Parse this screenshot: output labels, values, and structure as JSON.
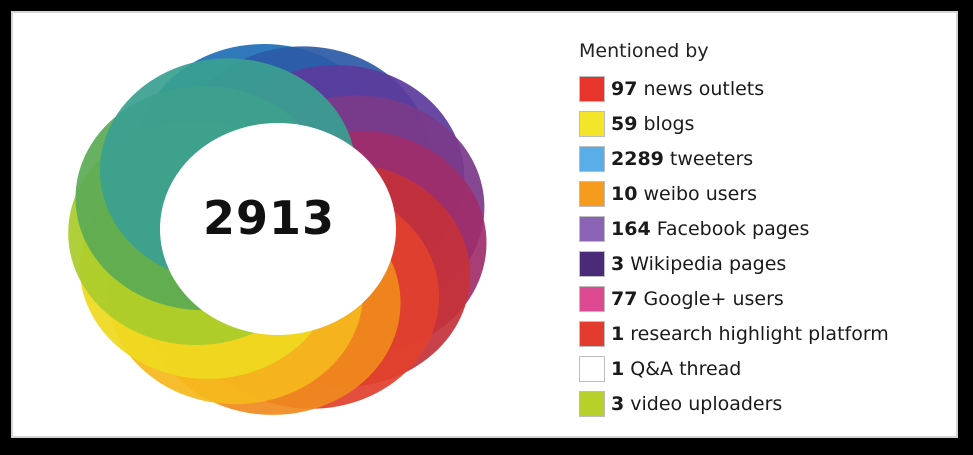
{
  "badge": {
    "score": "2913",
    "ring_colors": [
      "#1e6fb5",
      "#2d5aa6",
      "#5b3b9c",
      "#7b3a8a",
      "#a02e6a",
      "#c4323a",
      "#e2402d",
      "#f08a1e",
      "#f5b81d",
      "#efd91f",
      "#a9cc2a",
      "#5caa55",
      "#3aa090"
    ]
  },
  "legend": {
    "title": "Mentioned by",
    "items": [
      {
        "count": "97",
        "text": " news outlets",
        "color": "#e8352c"
      },
      {
        "count": "59",
        "text": " blogs",
        "color": "#f2e52a"
      },
      {
        "count": "2289",
        "text": " tweeters",
        "color": "#5aaee8"
      },
      {
        "count": "10",
        "text": " weibo users",
        "color": "#f59b1e"
      },
      {
        "count": "164",
        "text": " Facebook pages",
        "color": "#8a63b5"
      },
      {
        "count": "3",
        "text": " Wikipedia pages",
        "color": "#4b2a78"
      },
      {
        "count": "77",
        "text": " Google+ users",
        "color": "#dd4a91"
      },
      {
        "count": "1",
        "text": " research highlight platform",
        "color": "#e43b2f"
      },
      {
        "count": "1",
        "text": " Q&A thread",
        "color": "#ffffff"
      },
      {
        "count": "3",
        "text": " video uploaders",
        "color": "#b9cf2a"
      }
    ]
  }
}
